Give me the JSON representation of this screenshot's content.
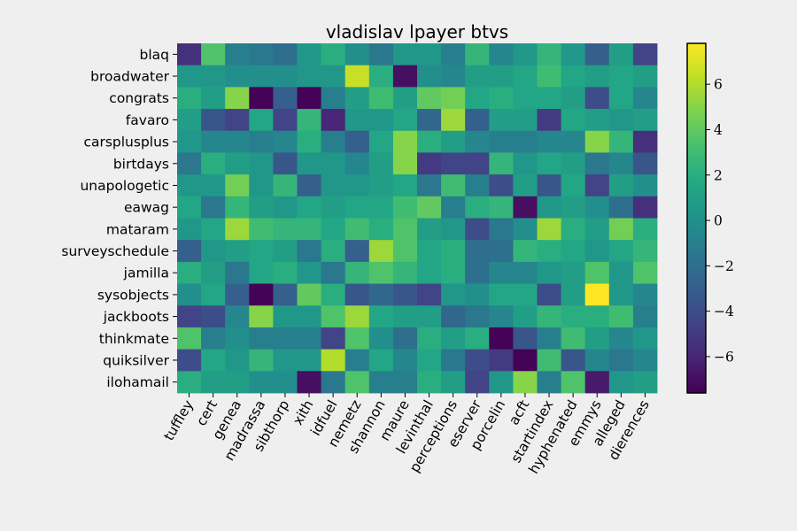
{
  "chart_data": {
    "type": "heatmap",
    "title": "vladislav lpayer btvs",
    "xlabel": "",
    "ylabel": "",
    "colormap": "viridis",
    "vmin": -7.6,
    "vmax": 7.8,
    "x_categories": [
      "tuffley",
      "cert",
      "genea",
      "madrassa",
      "sibthorp",
      "xith",
      "idfuel",
      "nemetz",
      "shannon",
      "maure",
      "levinthal",
      "perceptions",
      "eserver",
      "porcelin",
      "acft",
      "startindex",
      "hyphenated",
      "emmys",
      "alleged",
      "dierences"
    ],
    "y_categories": [
      "blaq",
      "broadwater",
      "congrats",
      "favaro",
      "carsplusplus",
      "birtdays",
      "unapologetic",
      "eawag",
      "mataram",
      "surveyschedule",
      "jamilla",
      "sysobjects",
      "jackboots",
      "thinkmate",
      "quiksilver",
      "ilohamail"
    ],
    "values": [
      [
        -5.5,
        3.5,
        -1.0,
        -1.5,
        -2.0,
        0.5,
        2.0,
        0.0,
        -1.5,
        0.5,
        0.5,
        -1.0,
        2.5,
        -0.5,
        0.5,
        2.5,
        0.5,
        -3.0,
        1.0,
        -4.5
      ],
      [
        0.5,
        0.5,
        0.0,
        0.0,
        0.0,
        0.5,
        0.5,
        6.5,
        2.0,
        -7.0,
        0.0,
        -0.5,
        1.0,
        1.0,
        1.5,
        3.0,
        1.5,
        1.0,
        1.5,
        1.0
      ],
      [
        2.0,
        1.0,
        5.0,
        -7.5,
        -3.0,
        -7.5,
        -1.0,
        1.0,
        3.0,
        1.0,
        4.0,
        4.5,
        1.5,
        2.0,
        1.5,
        1.5,
        1.0,
        -4.0,
        1.5,
        -0.5
      ],
      [
        1.0,
        -3.5,
        -4.5,
        1.5,
        -4.5,
        2.5,
        -6.0,
        0.5,
        0.5,
        1.5,
        -2.5,
        5.5,
        -3.0,
        1.0,
        1.0,
        -5.0,
        1.5,
        1.0,
        0.5,
        1.0
      ],
      [
        0.5,
        -0.5,
        -0.5,
        -1.0,
        -0.5,
        2.0,
        -1.0,
        -3.0,
        1.5,
        5.0,
        2.0,
        1.0,
        -0.5,
        -1.0,
        -1.0,
        -0.5,
        -0.5,
        5.0,
        2.5,
        -5.5
      ],
      [
        -1.5,
        2.0,
        1.0,
        0.5,
        -3.5,
        0.5,
        0.5,
        -0.5,
        1.0,
        5.0,
        -5.0,
        -4.5,
        -4.5,
        2.5,
        0.5,
        1.5,
        1.0,
        -1.5,
        -0.5,
        -3.5
      ],
      [
        0.5,
        0.5,
        4.5,
        0.5,
        2.5,
        -3.0,
        0.5,
        0.5,
        1.0,
        1.5,
        -1.5,
        3.0,
        -1.0,
        -4.0,
        1.0,
        -3.5,
        1.5,
        -4.5,
        1.0,
        0.0
      ],
      [
        1.5,
        -1.5,
        2.5,
        1.0,
        0.5,
        1.5,
        1.0,
        1.5,
        1.5,
        3.0,
        4.0,
        -1.0,
        2.0,
        2.5,
        -7.0,
        0.5,
        1.0,
        0.0,
        -2.0,
        -5.5
      ],
      [
        0.5,
        1.5,
        5.5,
        3.0,
        2.5,
        2.5,
        1.5,
        3.0,
        2.0,
        3.5,
        1.0,
        0.5,
        -4.0,
        -1.5,
        0.0,
        5.5,
        2.0,
        1.0,
        4.5,
        2.0
      ],
      [
        -3.0,
        0.5,
        1.0,
        1.5,
        1.0,
        -1.5,
        2.0,
        -3.0,
        5.5,
        3.5,
        1.5,
        2.0,
        -2.0,
        -2.0,
        2.5,
        2.0,
        1.5,
        0.5,
        1.5,
        2.5
      ],
      [
        2.0,
        1.0,
        -1.5,
        1.5,
        2.0,
        0.5,
        -1.5,
        2.5,
        3.5,
        2.5,
        1.5,
        2.0,
        -2.0,
        -0.5,
        -0.5,
        0.5,
        1.0,
        3.5,
        0.5,
        3.5
      ],
      [
        0.0,
        1.5,
        -3.0,
        -7.5,
        -3.0,
        4.0,
        2.0,
        -3.5,
        -2.5,
        -3.5,
        -4.5,
        0.5,
        0.0,
        1.5,
        1.5,
        -4.0,
        1.0,
        7.8,
        0.5,
        -0.5
      ],
      [
        -4.5,
        -4.0,
        -0.5,
        5.0,
        0.5,
        0.5,
        3.5,
        5.5,
        1.5,
        1.0,
        1.0,
        -2.5,
        -1.5,
        -0.5,
        1.0,
        2.5,
        2.0,
        2.0,
        3.0,
        -1.0
      ],
      [
        3.5,
        -1.0,
        0.0,
        -1.0,
        -1.0,
        -1.0,
        -4.5,
        3.5,
        0.0,
        -2.0,
        2.0,
        1.0,
        2.0,
        -7.5,
        -3.5,
        -1.0,
        3.0,
        1.0,
        -0.5,
        0.5
      ],
      [
        -4.0,
        1.5,
        0.5,
        2.5,
        0.5,
        0.5,
        6.0,
        -1.0,
        1.5,
        -0.5,
        1.5,
        -1.5,
        -4.0,
        -5.0,
        -7.5,
        3.0,
        -3.5,
        -0.5,
        -1.5,
        -0.5
      ],
      [
        2.0,
        1.0,
        1.0,
        0.0,
        0.0,
        -7.0,
        -1.5,
        3.5,
        -1.0,
        -1.0,
        2.0,
        1.0,
        -4.5,
        0.5,
        5.0,
        -1.0,
        3.5,
        -6.5,
        0.5,
        1.0
      ]
    ],
    "colorbar_ticks": [
      -6,
      -4,
      -2,
      0,
      2,
      4,
      6
    ]
  }
}
